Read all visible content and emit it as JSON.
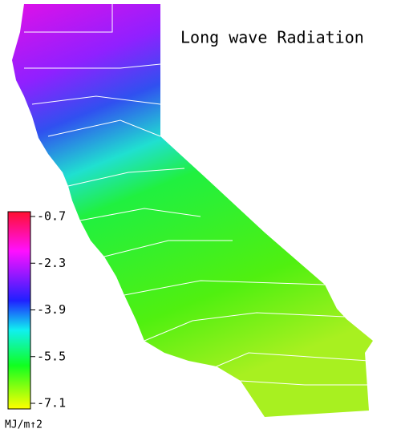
{
  "title": "Long wave Radiation",
  "colorbar": {
    "lim": [
      -7.1,
      -0.7
    ],
    "ticks": [
      -0.7,
      -2.3,
      -3.9,
      -5.5,
      -7.1
    ],
    "unit": "MJ/m↑2"
  }
}
